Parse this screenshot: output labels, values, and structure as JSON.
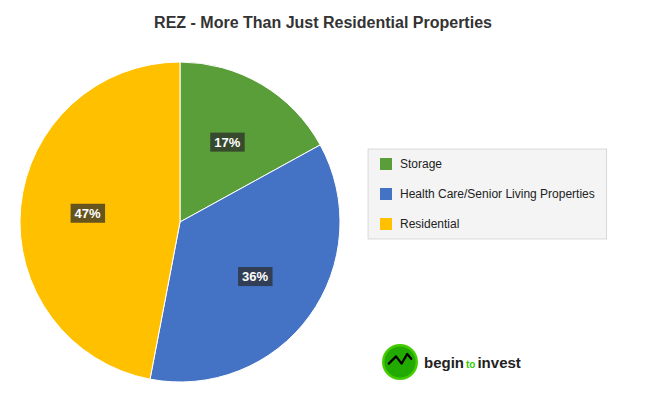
{
  "chart_data": {
    "type": "pie",
    "title": "REZ - More Than Just Residential Properties",
    "categories": [
      "Storage",
      "Health Care/Senior Living Properties",
      "Residential"
    ],
    "values": [
      17,
      36,
      47
    ],
    "value_labels": [
      "17%",
      "36%",
      "47%"
    ],
    "colors": [
      "#5a9e3a",
      "#4472c4",
      "#ffc000"
    ],
    "data_labels": true,
    "legend": "right",
    "annotations": [
      "begin",
      "to",
      "invest"
    ]
  }
}
